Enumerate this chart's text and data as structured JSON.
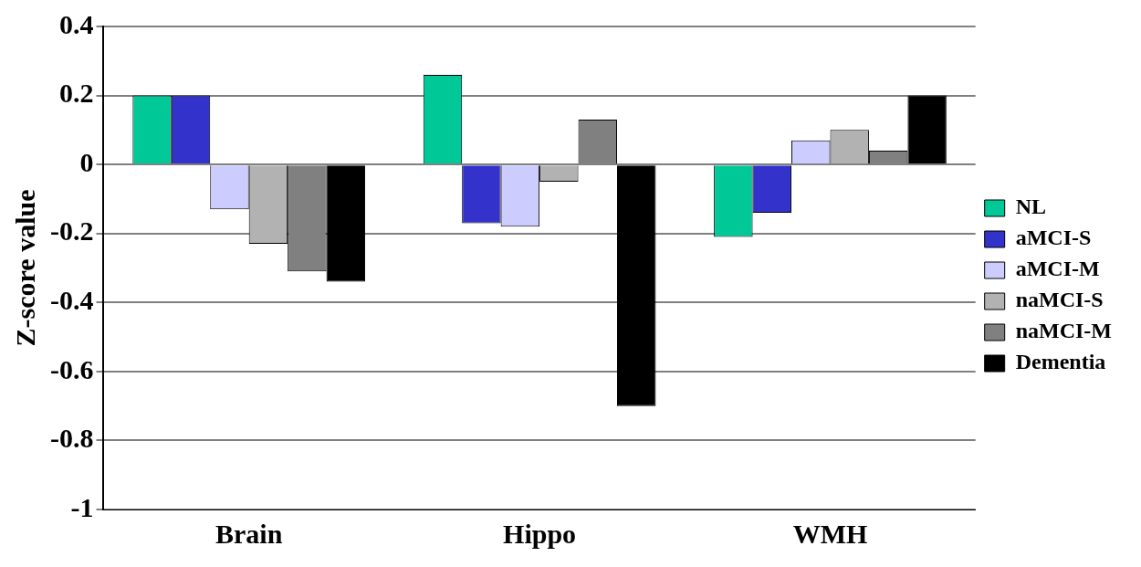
{
  "chart_data": {
    "type": "bar",
    "ylabel": "Z-score value",
    "categories": [
      "Brain",
      "Hippo",
      "WMH"
    ],
    "series": [
      {
        "name": "NL",
        "color": "#00c896",
        "values": [
          0.2,
          0.26,
          -0.21
        ]
      },
      {
        "name": "aMCI-S",
        "color": "#3333cc",
        "values": [
          0.2,
          -0.17,
          -0.14
        ]
      },
      {
        "name": "aMCI-M",
        "color": "#ccccff",
        "values": [
          -0.13,
          -0.18,
          0.07
        ]
      },
      {
        "name": "naMCI-S",
        "color": "#b2b2b2",
        "values": [
          -0.23,
          -0.05,
          0.1
        ]
      },
      {
        "name": "naMCI-M",
        "color": "#808080",
        "values": [
          -0.31,
          0.13,
          0.04
        ]
      },
      {
        "name": "Dementia",
        "color": "#000000",
        "values": [
          -0.34,
          -0.7,
          0.2
        ]
      }
    ],
    "ylim": [
      -1,
      0.4
    ],
    "yticks": [
      -1,
      -0.8,
      -0.6,
      -0.4,
      -0.2,
      0,
      0.2,
      0.4
    ],
    "grid": "y",
    "legend": "right"
  }
}
